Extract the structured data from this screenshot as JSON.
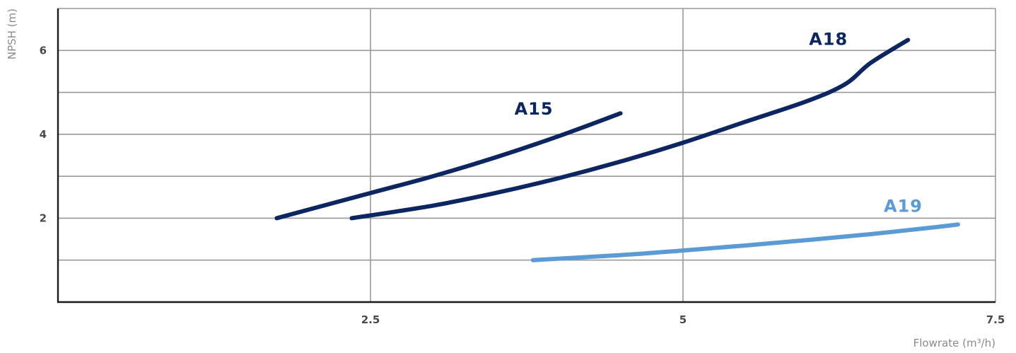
{
  "chart_data": {
    "type": "line",
    "xlabel": "Flowrate (m³/h)",
    "ylabel": "NPSH (m)",
    "xlim": [
      0,
      7.5
    ],
    "ylim": [
      0,
      7
    ],
    "x_ticks": [
      2.5,
      5,
      7.5
    ],
    "x_tick_labels": [
      "2.5",
      "5",
      "7.5"
    ],
    "y_ticks": [
      2,
      4,
      6
    ],
    "y_tick_labels": [
      "2",
      "4",
      "6"
    ],
    "grid": true,
    "grid_x": [
      2.5,
      5
    ],
    "grid_y": [
      1,
      2,
      3,
      4,
      5,
      6
    ],
    "legend": "inline labels",
    "series": [
      {
        "name": "A15",
        "color": "#0c2661",
        "x": [
          1.75,
          2.5,
          3.0,
          3.5,
          4.0,
          4.5
        ],
        "y": [
          2.0,
          2.6,
          3.0,
          3.45,
          3.95,
          4.5
        ]
      },
      {
        "name": "A18",
        "color": "#0c2661",
        "x": [
          2.35,
          3.0,
          3.5,
          4.0,
          4.5,
          5.0,
          5.5,
          6.0,
          6.3,
          6.5,
          6.8
        ],
        "y": [
          2.0,
          2.3,
          2.6,
          2.95,
          3.35,
          3.8,
          4.3,
          4.8,
          5.2,
          5.7,
          6.25
        ]
      },
      {
        "name": "A19",
        "color": "#5a9bd5",
        "x": [
          3.8,
          4.5,
          5.0,
          5.5,
          6.0,
          6.5,
          7.0,
          7.2
        ],
        "y": [
          1.0,
          1.12,
          1.23,
          1.35,
          1.48,
          1.62,
          1.78,
          1.85
        ]
      }
    ]
  }
}
